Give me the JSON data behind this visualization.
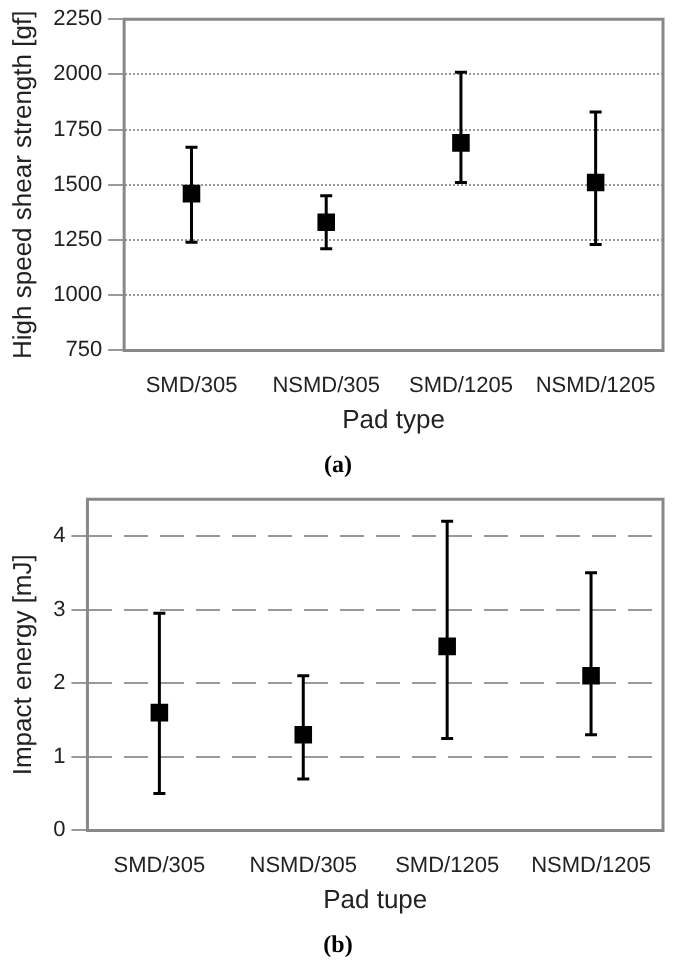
{
  "chart_data": [
    {
      "type": "scatter",
      "categories": [
        "SMD/305",
        "NSMD/305",
        "SMD/1205",
        "NSMD/1205"
      ],
      "values": [
        1460,
        1330,
        1690,
        1510
      ],
      "errors": [
        [
          1240,
          1670
        ],
        [
          1210,
          1450
        ],
        [
          1510,
          2010
        ],
        [
          1230,
          1830
        ]
      ],
      "color": "#000000",
      "marker": "square",
      "ylim": [
        750,
        2250
      ],
      "yticks": [
        750,
        1000,
        1250,
        1500,
        1750,
        2000,
        2250
      ],
      "xlabel": "Pad type",
      "ylabel": "High speed shear strength [gf]",
      "grid": "y",
      "legend": false,
      "annotations": [
        "(a)"
      ]
    },
    {
      "type": "scatter",
      "categories": [
        "SMD/305",
        "NSMD/305",
        "SMD/1205",
        "NSMD/1205"
      ],
      "values": [
        1.6,
        1.3,
        2.5,
        2.1
      ],
      "errors": [
        [
          0.5,
          2.95
        ],
        [
          0.7,
          2.1
        ],
        [
          1.25,
          4.2
        ],
        [
          1.3,
          3.5
        ]
      ],
      "color": "#000000",
      "marker": "square",
      "ylim": [
        0,
        4.5
      ],
      "yticks": [
        0,
        1,
        2,
        3,
        4
      ],
      "xlabel": "Pad tupe",
      "ylabel": "Impact energy [mJ]",
      "grid": "y",
      "legend": false,
      "annotations": [
        "(b)"
      ]
    }
  ]
}
